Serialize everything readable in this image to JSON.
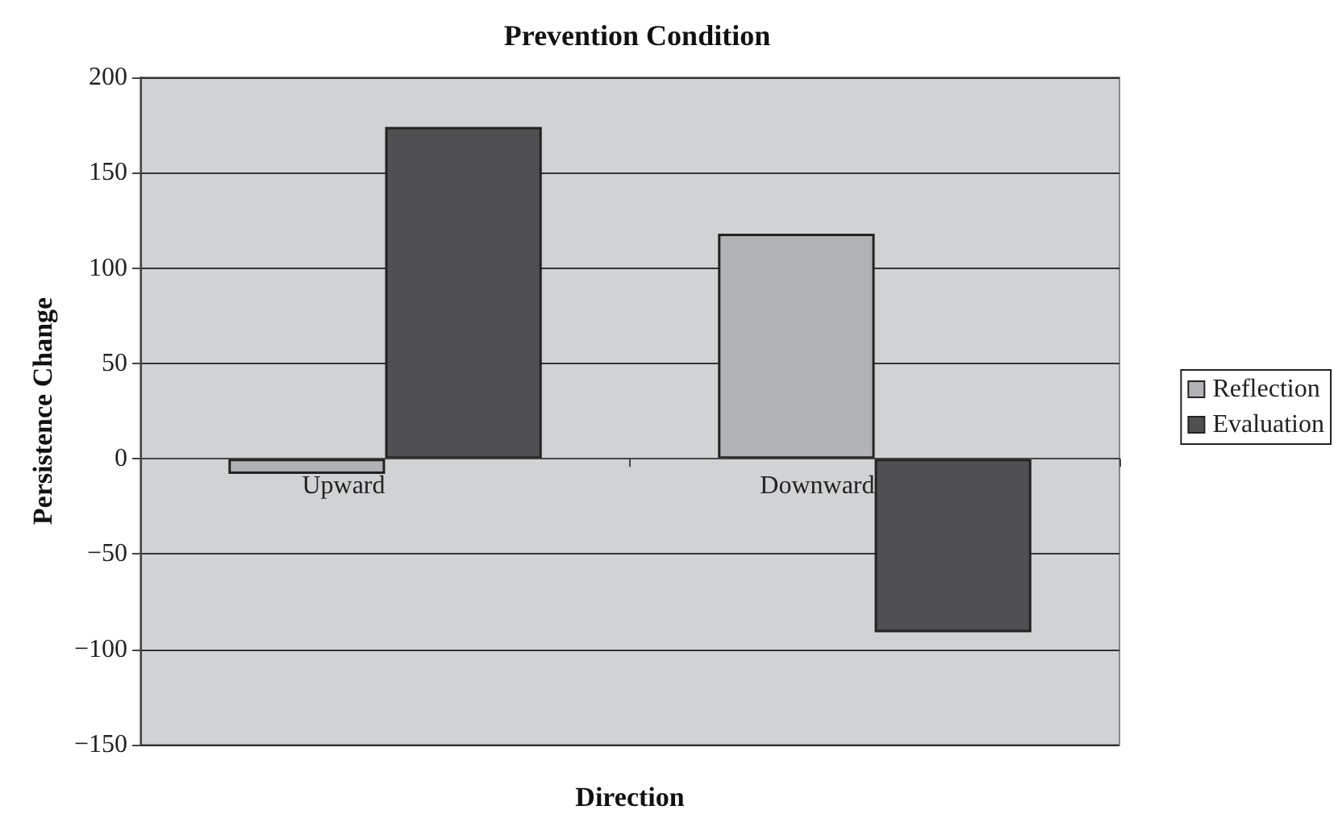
{
  "chart_data": {
    "type": "bar",
    "title": "Prevention Condition",
    "xlabel": "Direction",
    "ylabel": "Persistence Change",
    "categories": [
      "Upward",
      "Downward"
    ],
    "series": [
      {
        "name": "Reflection",
        "color": "#b1b2b5",
        "values": [
          -8,
          118
        ]
      },
      {
        "name": "Evaluation",
        "color": "#505052",
        "values": [
          174,
          -91
        ]
      }
    ],
    "ylim": [
      -150,
      200
    ],
    "yticks": [
      -150,
      -100,
      -50,
      0,
      50,
      100,
      150,
      200
    ],
    "grid": "y",
    "legend": "right"
  }
}
